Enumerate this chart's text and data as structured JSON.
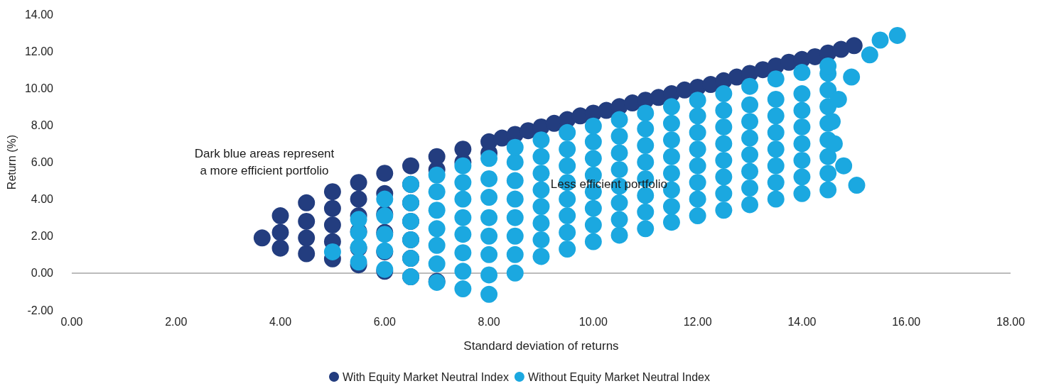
{
  "chart_data": {
    "type": "scatter",
    "xlabel": "Standard deviation of returns",
    "ylabel": "Return (%)",
    "xlim": [
      0,
      18
    ],
    "ylim": [
      -2,
      14
    ],
    "xticks": [
      {
        "value": 0,
        "label": "0.00"
      },
      {
        "value": 2,
        "label": "2.00"
      },
      {
        "value": 4,
        "label": "4.00"
      },
      {
        "value": 6,
        "label": "6.00"
      },
      {
        "value": 8,
        "label": "8.00"
      },
      {
        "value": 10,
        "label": "10.00"
      },
      {
        "value": 12,
        "label": "12.00"
      },
      {
        "value": 14,
        "label": "14.00"
      },
      {
        "value": 16,
        "label": "16.00"
      },
      {
        "value": 18,
        "label": "18.00"
      }
    ],
    "yticks": [
      {
        "value": -2,
        "label": "-2.00"
      },
      {
        "value": 0,
        "label": "0.00"
      },
      {
        "value": 2,
        "label": "2.00"
      },
      {
        "value": 4,
        "label": "4.00"
      },
      {
        "value": 6,
        "label": "6.00"
      },
      {
        "value": 8,
        "label": "8.00"
      },
      {
        "value": 10,
        "label": "10.00"
      },
      {
        "value": 12,
        "label": "12.00"
      },
      {
        "value": 14,
        "label": "14.00"
      }
    ],
    "grid": false,
    "legend": "bottom",
    "marker": "circle",
    "ref_lines": [
      {
        "axis": "y",
        "value": 0,
        "label": null,
        "color": "#a6a6a6"
      }
    ],
    "annotations": [
      "Dark blue areas represent\na more efficient portfolio",
      {
        "text": "Less efficient portfolio",
        "x": 10.3,
        "y": 4.8
      }
    ],
    "series": [
      {
        "name": "With Equity Market Neutral Index",
        "color": "#233d7f",
        "x": [
          3.65,
          4.0,
          4.0,
          4.0,
          4.5,
          4.5,
          4.5,
          4.5,
          5.0,
          5.0,
          5.0,
          5.0,
          5.0,
          5.5,
          5.5,
          5.5,
          5.5,
          5.5,
          5.5,
          6.0,
          6.0,
          6.0,
          6.0,
          6.0,
          6.0,
          6.5,
          6.5,
          6.5,
          6.5,
          6.5,
          6.5,
          6.5,
          7.0,
          7.0,
          7.0,
          7.5,
          7.5,
          8.0,
          8.0,
          8.25,
          8.5,
          8.75,
          9.0,
          9.25,
          9.5,
          9.75,
          10.0,
          10.25,
          10.5,
          10.75,
          11.0,
          11.25,
          11.5,
          11.75,
          12.0,
          12.25,
          12.5,
          12.75,
          13.0,
          13.25,
          13.5,
          13.75,
          14.0,
          14.25,
          14.5,
          14.75,
          15.0
        ],
        "values": [
          1.9,
          1.35,
          2.2,
          3.1,
          1.05,
          1.9,
          2.8,
          3.8,
          0.77,
          1.7,
          2.6,
          3.5,
          4.4,
          0.45,
          1.35,
          2.25,
          3.1,
          4.0,
          4.9,
          0.1,
          1.15,
          2.2,
          3.2,
          4.3,
          5.4,
          -0.2,
          0.8,
          1.8,
          2.8,
          3.8,
          4.8,
          5.8,
          -0.45,
          5.6,
          6.3,
          6.0,
          6.7,
          6.5,
          7.1,
          7.3,
          7.5,
          7.7,
          7.9,
          8.1,
          8.3,
          8.5,
          8.65,
          8.8,
          9.0,
          9.2,
          9.35,
          9.5,
          9.7,
          9.9,
          10.05,
          10.2,
          10.4,
          10.6,
          10.8,
          11.0,
          11.2,
          11.4,
          11.55,
          11.7,
          11.9,
          12.1,
          12.3
        ]
      },
      {
        "name": "Without Equity Market Neutral Index",
        "color": "#1ba8e0",
        "x": [
          5.0,
          5.5,
          5.5,
          5.5,
          5.5,
          6.0,
          6.0,
          6.0,
          6.0,
          6.0,
          6.5,
          6.5,
          6.5,
          6.5,
          6.5,
          6.5,
          7.0,
          7.0,
          7.0,
          7.0,
          7.0,
          7.0,
          7.0,
          7.5,
          7.5,
          7.5,
          7.5,
          7.5,
          7.5,
          7.5,
          7.5,
          8.0,
          8.0,
          8.0,
          8.0,
          8.0,
          8.0,
          8.0,
          8.0,
          8.5,
          8.5,
          8.5,
          8.5,
          8.5,
          8.5,
          8.5,
          8.5,
          9.0,
          9.0,
          9.0,
          9.0,
          9.0,
          9.0,
          9.0,
          9.0,
          9.5,
          9.5,
          9.5,
          9.5,
          9.5,
          9.5,
          9.5,
          9.5,
          10.0,
          10.0,
          10.0,
          10.0,
          10.0,
          10.0,
          10.0,
          10.0,
          10.5,
          10.5,
          10.5,
          10.5,
          10.5,
          10.5,
          10.5,
          10.5,
          11.0,
          11.0,
          11.0,
          11.0,
          11.0,
          11.0,
          11.0,
          11.0,
          11.5,
          11.5,
          11.5,
          11.5,
          11.5,
          11.5,
          11.5,
          11.5,
          12.0,
          12.0,
          12.0,
          12.0,
          12.0,
          12.0,
          12.0,
          12.0,
          12.5,
          12.5,
          12.5,
          12.5,
          12.5,
          12.5,
          12.5,
          12.5,
          13.0,
          13.0,
          13.0,
          13.0,
          13.0,
          13.0,
          13.0,
          13.0,
          13.5,
          13.5,
          13.5,
          13.5,
          13.5,
          13.5,
          13.5,
          13.5,
          14.0,
          14.0,
          14.0,
          14.0,
          14.0,
          14.0,
          14.0,
          14.0,
          14.5,
          14.5,
          14.5,
          14.5,
          14.5,
          14.5,
          14.5,
          14.5,
          14.5,
          15.05,
          14.8,
          14.62,
          14.58,
          14.7,
          14.95,
          15.3,
          15.5,
          15.83
        ],
        "values": [
          1.15,
          0.6,
          1.4,
          2.2,
          2.9,
          0.2,
          1.2,
          2.1,
          3.1,
          4.0,
          -0.2,
          0.8,
          1.8,
          2.8,
          3.8,
          4.8,
          -0.5,
          0.5,
          1.5,
          2.4,
          3.4,
          4.4,
          5.3,
          -0.85,
          0.1,
          1.1,
          2.1,
          3.0,
          4.0,
          4.9,
          5.8,
          -1.15,
          -0.1,
          1.0,
          2.0,
          3.0,
          4.1,
          5.1,
          6.2,
          0.0,
          1.0,
          2.0,
          3.0,
          4.0,
          5.0,
          6.0,
          6.8,
          0.9,
          1.8,
          2.7,
          3.6,
          4.5,
          5.4,
          6.3,
          7.2,
          1.3,
          2.2,
          3.1,
          4.0,
          4.9,
          5.8,
          6.7,
          7.6,
          1.7,
          2.6,
          3.5,
          4.4,
          5.3,
          6.2,
          7.1,
          7.95,
          2.05,
          2.9,
          3.8,
          4.7,
          5.6,
          6.5,
          7.4,
          8.3,
          2.4,
          3.3,
          4.2,
          5.1,
          6.0,
          6.9,
          7.8,
          8.65,
          2.75,
          3.6,
          4.5,
          5.4,
          6.3,
          7.2,
          8.1,
          9.0,
          3.1,
          4.0,
          4.9,
          5.8,
          6.7,
          7.6,
          8.5,
          9.35,
          3.4,
          4.3,
          5.2,
          6.1,
          7.0,
          7.9,
          8.8,
          9.7,
          3.7,
          4.6,
          5.5,
          6.4,
          7.3,
          8.2,
          9.1,
          10.1,
          4.0,
          4.9,
          5.8,
          6.7,
          7.6,
          8.5,
          9.4,
          10.5,
          4.3,
          5.2,
          6.1,
          7.0,
          7.9,
          8.8,
          9.7,
          10.85,
          4.5,
          5.4,
          6.3,
          7.2,
          8.1,
          9.0,
          9.9,
          10.8,
          11.2,
          4.75,
          5.8,
          7.0,
          8.2,
          9.4,
          10.6,
          11.8,
          12.6,
          12.85
        ]
      }
    ]
  }
}
